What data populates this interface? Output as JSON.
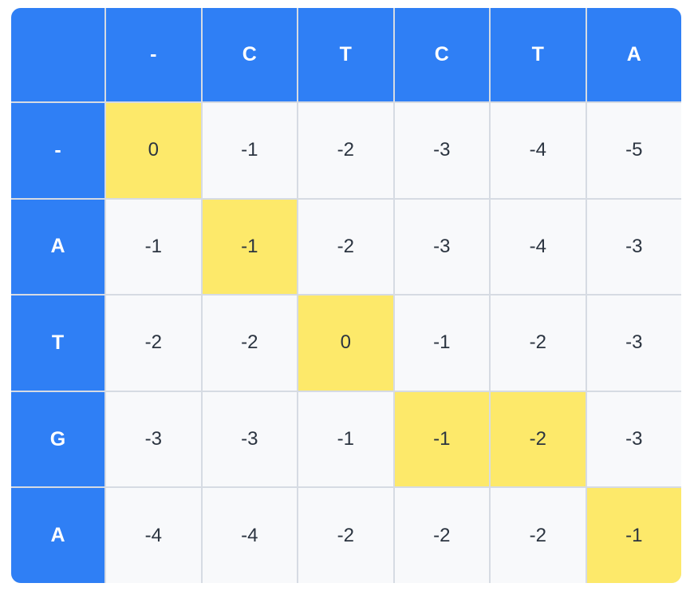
{
  "columns": [
    "-",
    "C",
    "T",
    "C",
    "T",
    "A"
  ],
  "rows": [
    {
      "label": "-",
      "values": [
        "0",
        "-1",
        "-2",
        "-3",
        "-4",
        "-5"
      ],
      "highlight": [
        0
      ]
    },
    {
      "label": "A",
      "values": [
        "-1",
        "-1",
        "-2",
        "-3",
        "-4",
        "-3"
      ],
      "highlight": [
        1
      ]
    },
    {
      "label": "T",
      "values": [
        "-2",
        "-2",
        "0",
        "-1",
        "-2",
        "-3"
      ],
      "highlight": [
        2
      ]
    },
    {
      "label": "G",
      "values": [
        "-3",
        "-3",
        "-1",
        "-1",
        "-2",
        "-3"
      ],
      "highlight": [
        3,
        4
      ]
    },
    {
      "label": "A",
      "values": [
        "-4",
        "-4",
        "-2",
        "-2",
        "-2",
        "-1"
      ],
      "highlight": [
        5
      ]
    }
  ],
  "colors": {
    "header": "#2f7ff5",
    "highlight": "#fde96a",
    "cell": "#f8f9fb",
    "grid": "#d6dbe3"
  }
}
